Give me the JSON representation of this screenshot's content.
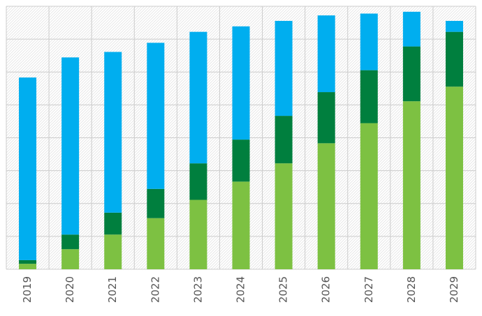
{
  "chart_data": {
    "type": "bar",
    "stacked": true,
    "categories": [
      "2019",
      "2020",
      "2021",
      "2022",
      "2023",
      "2024",
      "2025",
      "2026",
      "2027",
      "2028",
      "2029"
    ],
    "series": [
      {
        "color": "#7DC142",
        "values": [
          1.5,
          5.5,
          9.5,
          14,
          19,
          24,
          29,
          34.5,
          40,
          46,
          50
        ]
      },
      {
        "color": "#007F3E",
        "values": [
          1,
          4,
          6,
          8,
          10,
          11.5,
          13,
          14,
          14.5,
          15,
          15
        ]
      },
      {
        "color": "#00AEEF",
        "values": [
          50,
          48.5,
          44,
          40,
          36,
          31,
          26,
          21,
          15.5,
          9.5,
          3
        ]
      }
    ],
    "ylim": [
      0,
      72
    ],
    "grid": true,
    "legend": "none"
  }
}
